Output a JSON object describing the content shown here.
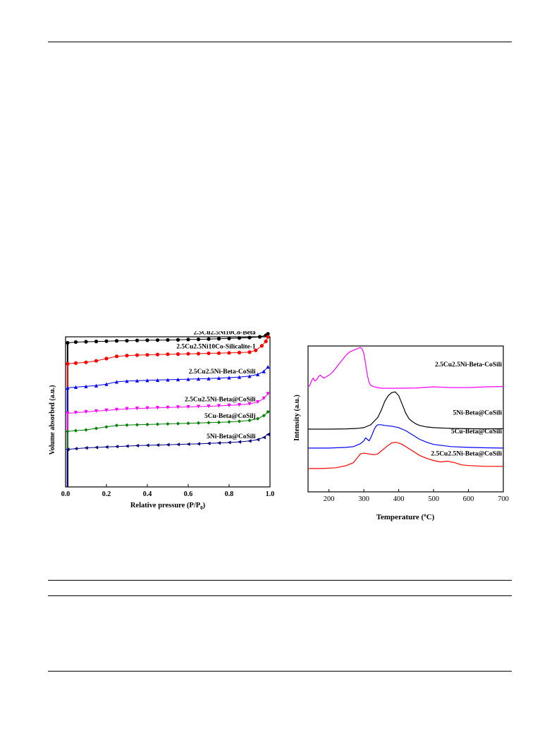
{
  "chart_data": [
    {
      "type": "scatter",
      "xlabel_main": "Relative pressure (P/P",
      "xlabel_sub": "0",
      "xlabel_end": ")",
      "ylabel": "Volume absorbed (a.u.)",
      "xlim": [
        0,
        1.0
      ],
      "xticks": [
        "0.0",
        "0.2",
        "0.4",
        "0.6",
        "0.8",
        "1.0"
      ],
      "series": [
        {
          "name": "2.5Cu2.5Ni10Co-Beta",
          "color": "#000000",
          "marker": "circle",
          "x": [
            0.01,
            0.05,
            0.1,
            0.15,
            0.2,
            0.25,
            0.3,
            0.35,
            0.4,
            0.45,
            0.5,
            0.55,
            0.6,
            0.65,
            0.7,
            0.75,
            0.8,
            0.85,
            0.9,
            0.95,
            0.98,
            0.99
          ],
          "y": [
            0.96,
            0.965,
            0.967,
            0.969,
            0.971,
            0.973,
            0.974,
            0.976,
            0.977,
            0.978,
            0.979,
            0.98,
            0.982,
            0.983,
            0.985,
            0.987,
            0.989,
            0.992,
            0.995,
            1.0,
            1.01,
            1.02
          ]
        },
        {
          "name": "2.5Cu2.5Ni10Co-Silicalite-1",
          "color": "#ff0000",
          "marker": "circle",
          "x": [
            0.01,
            0.05,
            0.1,
            0.15,
            0.2,
            0.25,
            0.3,
            0.35,
            0.4,
            0.45,
            0.5,
            0.55,
            0.6,
            0.65,
            0.7,
            0.75,
            0.8,
            0.85,
            0.9,
            0.93,
            0.96,
            0.98,
            0.99
          ],
          "y": [
            0.82,
            0.825,
            0.83,
            0.84,
            0.855,
            0.87,
            0.875,
            0.878,
            0.88,
            0.882,
            0.884,
            0.885,
            0.887,
            0.888,
            0.89,
            0.891,
            0.893,
            0.895,
            0.898,
            0.91,
            0.94,
            0.97,
            1.0
          ]
        },
        {
          "name": "2.5Cu2.5Ni-Beta-CoSili",
          "color": "#0000ff",
          "marker": "triangle",
          "x": [
            0.01,
            0.05,
            0.1,
            0.15,
            0.2,
            0.25,
            0.3,
            0.35,
            0.4,
            0.45,
            0.5,
            0.55,
            0.6,
            0.65,
            0.7,
            0.75,
            0.8,
            0.85,
            0.9,
            0.94,
            0.97,
            0.99
          ],
          "y": [
            0.66,
            0.665,
            0.67,
            0.675,
            0.685,
            0.7,
            0.705,
            0.708,
            0.71,
            0.712,
            0.714,
            0.716,
            0.718,
            0.72,
            0.722,
            0.725,
            0.728,
            0.732,
            0.738,
            0.75,
            0.77,
            0.8
          ]
        },
        {
          "name": "2.5Cu2.5Ni-Beta@CoSili",
          "color": "#ff00ff",
          "marker": "triangle-down",
          "x": [
            0.01,
            0.05,
            0.1,
            0.15,
            0.2,
            0.25,
            0.3,
            0.35,
            0.4,
            0.45,
            0.5,
            0.55,
            0.6,
            0.65,
            0.7,
            0.75,
            0.8,
            0.85,
            0.9,
            0.94,
            0.97,
            0.99
          ],
          "y": [
            0.49,
            0.495,
            0.5,
            0.505,
            0.51,
            0.515,
            0.52,
            0.523,
            0.525,
            0.527,
            0.529,
            0.531,
            0.533,
            0.535,
            0.537,
            0.54,
            0.543,
            0.547,
            0.553,
            0.565,
            0.59,
            0.62
          ]
        },
        {
          "name": "5Cu-Beta@CoSilj",
          "color": "#008000",
          "marker": "diamond",
          "x": [
            0.01,
            0.05,
            0.1,
            0.15,
            0.2,
            0.25,
            0.3,
            0.35,
            0.4,
            0.45,
            0.5,
            0.55,
            0.6,
            0.65,
            0.7,
            0.75,
            0.8,
            0.85,
            0.9,
            0.94,
            0.97,
            0.99
          ],
          "y": [
            0.37,
            0.375,
            0.38,
            0.39,
            0.4,
            0.41,
            0.412,
            0.414,
            0.416,
            0.418,
            0.42,
            0.422,
            0.424,
            0.426,
            0.428,
            0.43,
            0.433,
            0.437,
            0.443,
            0.455,
            0.475,
            0.5
          ]
        },
        {
          "name": "5Ni-Beta@CoSili",
          "color": "#000080",
          "marker": "triangle-left",
          "x": [
            0.01,
            0.05,
            0.1,
            0.15,
            0.2,
            0.25,
            0.3,
            0.35,
            0.4,
            0.45,
            0.5,
            0.55,
            0.6,
            0.65,
            0.7,
            0.75,
            0.8,
            0.85,
            0.9,
            0.94,
            0.97,
            0.99
          ],
          "y": [
            0.25,
            0.255,
            0.26,
            0.263,
            0.266,
            0.269,
            0.272,
            0.275,
            0.277,
            0.279,
            0.281,
            0.283,
            0.285,
            0.287,
            0.29,
            0.293,
            0.296,
            0.3,
            0.306,
            0.315,
            0.33,
            0.35
          ]
        }
      ]
    },
    {
      "type": "line",
      "xlabel_main": "Temperature (",
      "xlabel_sup": "o",
      "xlabel_end": "C)",
      "ylabel": "Intensity (a.u.)",
      "xlim": [
        140,
        700
      ],
      "xticks": [
        "200",
        "300",
        "400",
        "500",
        "600",
        "700"
      ],
      "series": [
        {
          "name": "2.5Cu2.5Ni-Beta-CoSili",
          "color": "#ff00ff",
          "x": [
            140,
            145,
            150,
            155,
            160,
            165,
            170,
            175,
            180,
            185,
            190,
            200,
            210,
            220,
            230,
            240,
            250,
            260,
            270,
            280,
            290,
            295,
            300,
            305,
            310,
            315,
            320,
            330,
            340,
            350,
            370,
            400,
            450,
            500,
            550,
            600,
            650,
            700
          ],
          "y": [
            0.72,
            0.73,
            0.76,
            0.78,
            0.76,
            0.77,
            0.79,
            0.8,
            0.79,
            0.78,
            0.785,
            0.8,
            0.82,
            0.85,
            0.88,
            0.91,
            0.94,
            0.96,
            0.97,
            0.98,
            0.99,
            0.98,
            0.95,
            0.88,
            0.8,
            0.75,
            0.73,
            0.72,
            0.715,
            0.71,
            0.71,
            0.71,
            0.712,
            0.72,
            0.715,
            0.715,
            0.72,
            0.722
          ]
        },
        {
          "name": "5Ni-Beta@CoSili",
          "color": "#000000",
          "x": [
            140,
            200,
            250,
            280,
            300,
            320,
            340,
            350,
            360,
            370,
            380,
            390,
            400,
            410,
            420,
            430,
            440,
            450,
            460,
            480,
            500,
            550,
            600,
            650,
            700
          ],
          "y": [
            0.43,
            0.43,
            0.432,
            0.435,
            0.44,
            0.46,
            0.51,
            0.56,
            0.62,
            0.66,
            0.68,
            0.685,
            0.66,
            0.6,
            0.54,
            0.5,
            0.48,
            0.465,
            0.455,
            0.445,
            0.44,
            0.435,
            0.433,
            0.432,
            0.433
          ]
        },
        {
          "name": "5Cu-Beta@CoSili",
          "color": "#0000ff",
          "x": [
            140,
            200,
            250,
            270,
            280,
            290,
            300,
            305,
            310,
            315,
            320,
            325,
            330,
            335,
            340,
            350,
            360,
            380,
            400,
            420,
            440,
            460,
            480,
            500,
            550,
            600,
            650,
            700
          ],
          "y": [
            0.3,
            0.3,
            0.305,
            0.31,
            0.32,
            0.33,
            0.35,
            0.37,
            0.36,
            0.35,
            0.37,
            0.4,
            0.43,
            0.45,
            0.46,
            0.46,
            0.455,
            0.45,
            0.44,
            0.42,
            0.39,
            0.36,
            0.34,
            0.325,
            0.31,
            0.305,
            0.302,
            0.3
          ]
        },
        {
          "name": "2.5Cu2.5Ni-Beta@CoSili",
          "color": "#ff0000",
          "x": [
            140,
            180,
            220,
            250,
            270,
            280,
            290,
            300,
            310,
            320,
            330,
            340,
            350,
            360,
            370,
            380,
            390,
            400,
            410,
            420,
            440,
            460,
            480,
            500,
            520,
            540,
            560,
            580,
            600,
            650,
            700
          ],
          "y": [
            0.16,
            0.16,
            0.165,
            0.18,
            0.2,
            0.23,
            0.26,
            0.265,
            0.262,
            0.258,
            0.255,
            0.26,
            0.28,
            0.3,
            0.32,
            0.335,
            0.34,
            0.335,
            0.325,
            0.31,
            0.28,
            0.25,
            0.23,
            0.215,
            0.205,
            0.21,
            0.2,
            0.185,
            0.18,
            0.175,
            0.175
          ]
        }
      ]
    }
  ]
}
